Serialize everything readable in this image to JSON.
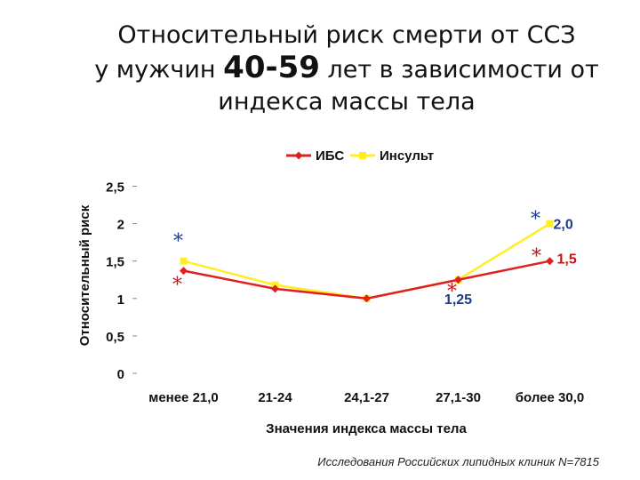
{
  "title": {
    "line1": "Относительный риск смерти от ССЗ",
    "line2_prefix": "у мужчин ",
    "line2_age": "40-59",
    "line2_suffix": " лет в зависимости от",
    "line3": "индекса массы тела"
  },
  "footnote": "Исследования Российских липидных клиник N=7815",
  "chart_data": {
    "type": "line",
    "xlabel": "Значения индекса массы тела",
    "ylabel": "Относительный риск",
    "categories": [
      "менее 21,0",
      "21-24",
      "24,1-27",
      "27,1-30",
      "более 30,0"
    ],
    "ylim": [
      0,
      2.5
    ],
    "yticks": [
      0,
      0.5,
      1,
      1.5,
      2,
      2.5
    ],
    "ytick_labels": [
      "0",
      "0,5",
      "1",
      "1,5",
      "2",
      "2,5"
    ],
    "grid": false,
    "legend": "top",
    "series": [
      {
        "name": "ИБС",
        "color": "#e02020",
        "marker": "diamond",
        "values": [
          1.37,
          1.13,
          1.0,
          1.25,
          1.5
        ]
      },
      {
        "name": "Инсульт",
        "color": "#ffee22",
        "marker": "square",
        "values": [
          1.5,
          1.18,
          1.0,
          1.25,
          2.0
        ]
      }
    ],
    "annotations": [
      {
        "text": "2,0",
        "category": 4,
        "y": 2.0,
        "color": "#1f3a8a"
      },
      {
        "text": "1,5",
        "category": 4,
        "y": 1.5,
        "color": "#d01010"
      },
      {
        "text": "1,25",
        "category": 3,
        "y": 1.0,
        "color": "#1f3a8a"
      }
    ],
    "significance_marks": [
      {
        "text": "*",
        "category": 0,
        "y": 1.5,
        "color": "#1f3a8a"
      },
      {
        "text": "*",
        "category": 0,
        "y": 1.37,
        "color": "#d01010"
      },
      {
        "text": "*",
        "category": 3,
        "y": 1.25,
        "color": "#d01010"
      },
      {
        "text": "*",
        "category": 4,
        "y": 2.0,
        "color": "#1f3a8a"
      },
      {
        "text": "*",
        "category": 4,
        "y": 1.5,
        "color": "#d01010"
      }
    ]
  }
}
